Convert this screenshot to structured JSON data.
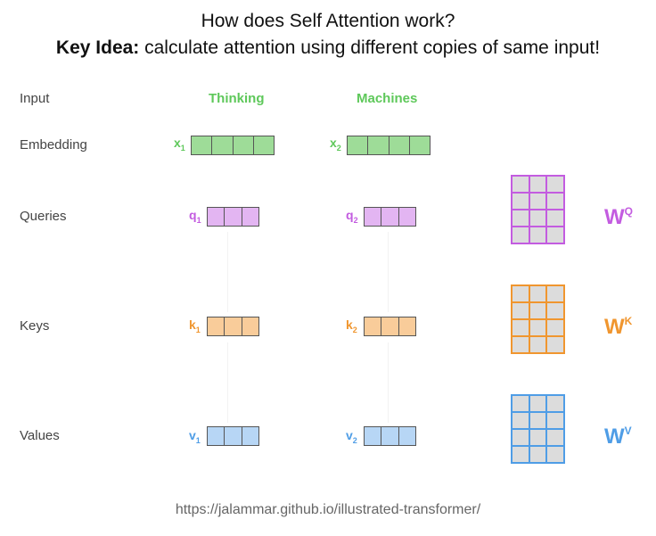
{
  "title": "How does Self Attention work?",
  "subtitle_bold": "Key Idea:",
  "subtitle_rest": " calculate attention using different copies of same input!",
  "rows": {
    "input": "Input",
    "embedding": "Embedding",
    "queries": "Queries",
    "keys": "Keys",
    "values": "Values"
  },
  "words": [
    "Thinking",
    "Machines"
  ],
  "symbols": {
    "x1": "x",
    "x1_sub": "1",
    "x2": "x",
    "x2_sub": "2",
    "q1": "q",
    "q1_sub": "1",
    "q2": "q",
    "q2_sub": "2",
    "k1": "k",
    "k1_sub": "1",
    "k2": "k",
    "k2_sub": "2",
    "v1": "v",
    "v1_sub": "1",
    "v2": "v",
    "v2_sub": "2"
  },
  "weights": {
    "wq": "W",
    "wq_sup": "Q",
    "wk": "W",
    "wk_sup": "K",
    "wv": "W",
    "wv_sup": "V"
  },
  "colors": {
    "green": "#5ec85a",
    "green_fill": "#9edc98",
    "query": "#c35ce0",
    "query_fill": "#e3b5f2",
    "key": "#f0962f",
    "key_fill": "#f9cc9a",
    "value": "#4f9de6",
    "value_fill": "#b7d6f5"
  },
  "url": "https://jalammar.github.io/illustrated-transformer/"
}
